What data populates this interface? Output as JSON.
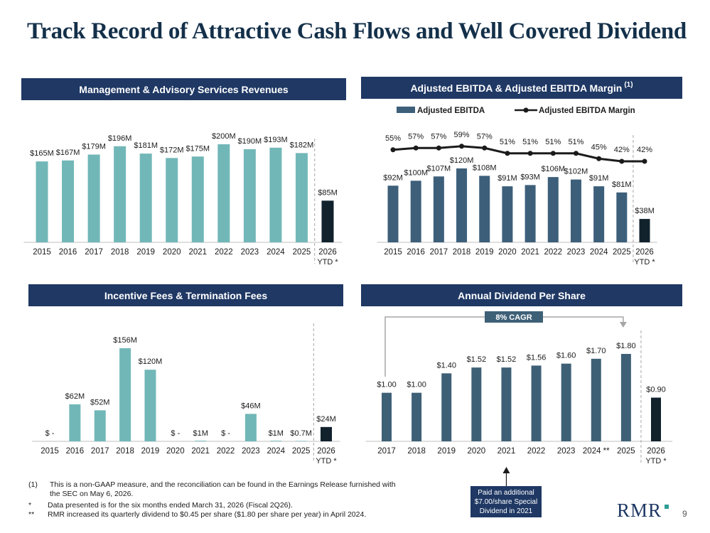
{
  "page": {
    "title": "Track Record of Attractive Cash Flows and Well Covered Dividend",
    "page_number": "9",
    "logo_text": "RMR",
    "callout": "Paid an additional $7.00/share Special Dividend in 2021",
    "footnotes": [
      {
        "mark": "(1)",
        "text": "This is a non-GAAP measure, and the reconciliation can be found in the Earnings Release furnished with the SEC on May 6, 2026."
      },
      {
        "mark": "*",
        "text": "Data presented is for the six months ended March 31, 2026 (Fiscal 2Q26)."
      },
      {
        "mark": "**",
        "text": "RMR increased its quarterly dividend to $0.45 per share ($1.80 per share per year) in April 2024."
      }
    ],
    "colors": {
      "teal": "#72b7b8",
      "navy": "#1f3864",
      "steel": "#3d5f7a",
      "dark": "#11222d",
      "slate": "#3e6077"
    }
  },
  "chart_data": [
    {
      "type": "bar",
      "title": "Management & Advisory Services Revenues",
      "categories": [
        "2015",
        "2016",
        "2017",
        "2018",
        "2019",
        "2020",
        "2021",
        "2022",
        "2023",
        "2024",
        "2025",
        "2026"
      ],
      "ytd_sublabel": "YTD *",
      "values": [
        165,
        167,
        179,
        196,
        181,
        172,
        175,
        200,
        190,
        193,
        182,
        85
      ],
      "labels": [
        "$165M",
        "$167M",
        "$179M",
        "$196M",
        "$181M",
        "$172M",
        "$175M",
        "$200M",
        "$190M",
        "$193M",
        "$182M",
        "$85M"
      ],
      "colors": {
        "main": "#72b7b8",
        "ytd": "#11222d"
      }
    },
    {
      "type": "bar",
      "title": "Adjusted EBITDA & Adjusted EBITDA Margin",
      "title_note": "(1)",
      "categories": [
        "2015",
        "2016",
        "2017",
        "2018",
        "2019",
        "2020",
        "2021",
        "2022",
        "2023",
        "2024",
        "2025",
        "2026"
      ],
      "ytd_sublabel": "YTD *",
      "series": [
        {
          "name": "Adjusted EBITDA",
          "type": "bar",
          "values": [
            92,
            100,
            107,
            120,
            108,
            91,
            93,
            106,
            102,
            91,
            81,
            38
          ],
          "labels": [
            "$92M",
            "$100M",
            "$107M",
            "$120M",
            "$108M",
            "$91M",
            "$93M",
            "$106M",
            "$102M",
            "$91M",
            "$81M",
            "$38M"
          ]
        },
        {
          "name": "Adjusted EBITDA Margin",
          "type": "line",
          "values": [
            55,
            57,
            57,
            59,
            57,
            51,
            51,
            51,
            51,
            45,
            42,
            42
          ],
          "labels": [
            "55%",
            "57%",
            "57%",
            "59%",
            "57%",
            "51%",
            "51%",
            "51%",
            "51%",
            "45%",
            "42%",
            "42%"
          ]
        }
      ],
      "colors": {
        "main": "#3d5f7a",
        "ytd": "#11222d",
        "line": "#1b1b1b"
      }
    },
    {
      "type": "bar",
      "title": "Incentive Fees & Termination Fees",
      "categories": [
        "2015",
        "2016",
        "2017",
        "2018",
        "2019",
        "2020",
        "2021",
        "2022",
        "2023",
        "2024",
        "2025",
        "2026"
      ],
      "ytd_sublabel": "YTD *",
      "values": [
        0,
        62,
        52,
        156,
        120,
        0,
        1,
        0,
        46,
        1,
        0.7,
        24
      ],
      "labels": [
        "$ -",
        "$62M",
        "$52M",
        "$156M",
        "$120M",
        "$ -",
        "$1M",
        "$ -",
        "$46M",
        "$1M",
        "$0.7M",
        "$24M"
      ],
      "colors": {
        "main": "#72b7b8",
        "ytd": "#11222d"
      }
    },
    {
      "type": "bar",
      "title": "Annual Dividend Per Share",
      "categories": [
        "2017",
        "2018",
        "2019",
        "2020",
        "2021",
        "2022",
        "2023",
        "2024",
        "2025",
        "2026"
      ],
      "category_suffix": {
        "2024": "**"
      },
      "ytd_sublabel": "YTD *",
      "values": [
        1.0,
        1.0,
        1.4,
        1.52,
        1.52,
        1.56,
        1.6,
        1.7,
        1.8,
        0.9
      ],
      "labels": [
        "$1.00",
        "$1.00",
        "$1.40",
        "$1.52",
        "$1.52",
        "$1.56",
        "$1.60",
        "$1.70",
        "$1.80",
        "$0.90"
      ],
      "cagr_label": "8% CAGR",
      "colors": {
        "main": "#3e6077",
        "ytd": "#11222d"
      }
    }
  ]
}
